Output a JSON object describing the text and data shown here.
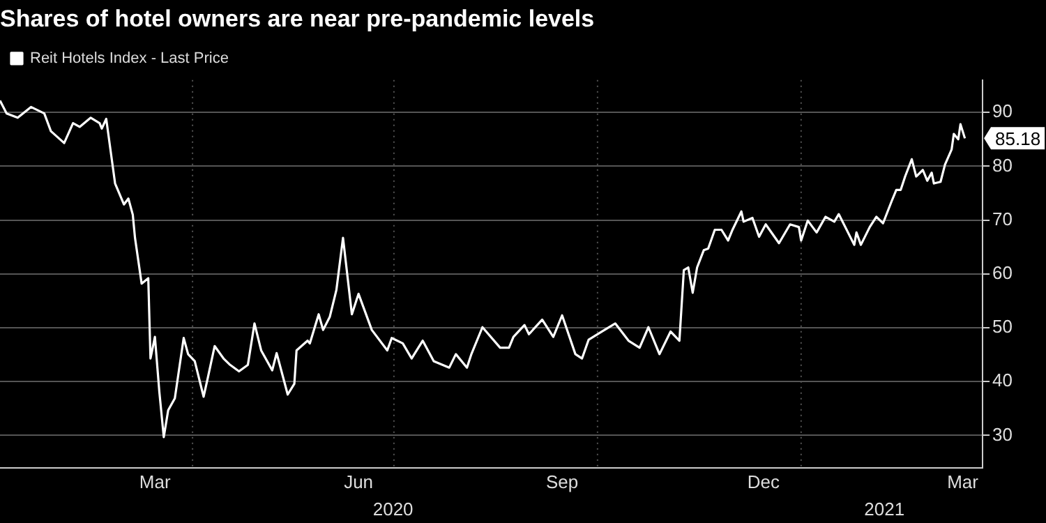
{
  "chart_data": {
    "type": "line",
    "title": "Shares of hotel owners are near pre-pandemic levels",
    "x": [
      "2020-01-05",
      "2020-01-08",
      "2020-01-13",
      "2020-01-19",
      "2020-01-25",
      "2020-01-28",
      "2020-02-03",
      "2020-02-07",
      "2020-02-10",
      "2020-02-15",
      "2020-02-19",
      "2020-02-20",
      "2020-02-22",
      "2020-02-26",
      "2020-03-01",
      "2020-03-03",
      "2020-03-05",
      "2020-03-06",
      "2020-03-09",
      "2020-03-12",
      "2020-03-13",
      "2020-03-15",
      "2020-03-17",
      "2020-03-19",
      "2020-03-21",
      "2020-03-24",
      "2020-03-28",
      "2020-03-30",
      "2020-04-02",
      "2020-04-06",
      "2020-04-08",
      "2020-04-11",
      "2020-04-15",
      "2020-04-18",
      "2020-04-22",
      "2020-04-26",
      "2020-04-29",
      "2020-05-02",
      "2020-05-07",
      "2020-05-09",
      "2020-05-14",
      "2020-05-17",
      "2020-05-18",
      "2020-05-23",
      "2020-05-24",
      "2020-05-28",
      "2020-05-30",
      "2020-06-02",
      "2020-06-05",
      "2020-06-08",
      "2020-06-12",
      "2020-06-15",
      "2020-06-21",
      "2020-06-28",
      "2020-06-30",
      "2020-07-05",
      "2020-07-09",
      "2020-07-14",
      "2020-07-19",
      "2020-07-26",
      "2020-07-29",
      "2020-08-03",
      "2020-08-05",
      "2020-08-10",
      "2020-08-18",
      "2020-08-22",
      "2020-08-24",
      "2020-08-29",
      "2020-08-31",
      "2020-09-06",
      "2020-09-11",
      "2020-09-15",
      "2020-09-21",
      "2020-09-24",
      "2020-09-27",
      "2020-10-03",
      "2020-10-09",
      "2020-10-15",
      "2020-10-20",
      "2020-10-24",
      "2020-10-29",
      "2020-11-03",
      "2020-11-07",
      "2020-11-09",
      "2020-11-11",
      "2020-11-13",
      "2020-11-15",
      "2020-11-18",
      "2020-11-20",
      "2020-11-23",
      "2020-11-26",
      "2020-11-29",
      "2020-12-01",
      "2020-12-05",
      "2020-12-06",
      "2020-12-10",
      "2020-12-13",
      "2020-12-16",
      "2020-12-22",
      "2020-12-27",
      "2020-12-31",
      "2021-01-01",
      "2021-01-04",
      "2021-01-08",
      "2021-01-12",
      "2021-01-16",
      "2021-01-18",
      "2021-01-25",
      "2021-01-26",
      "2021-01-28",
      "2021-02-01",
      "2021-02-04",
      "2021-02-07",
      "2021-02-11",
      "2021-02-13",
      "2021-02-15",
      "2021-02-17",
      "2021-02-20",
      "2021-02-22",
      "2021-02-25",
      "2021-02-27",
      "2021-03-01",
      "2021-03-02",
      "2021-03-05",
      "2021-03-07",
      "2021-03-10",
      "2021-03-11",
      "2021-03-13",
      "2021-03-14",
      "2021-03-16"
    ],
    "series": [
      {
        "name": "Reit Hotels Index - Last Price",
        "color": "#ffffff",
        "values": [
          92.2,
          89.8,
          89,
          91,
          89.8,
          86.5,
          84.3,
          88,
          87.3,
          89,
          88,
          87,
          88.8,
          76.8,
          72.9,
          74,
          71,
          66.7,
          58.2,
          59.2,
          44.3,
          48.3,
          38.1,
          29.7,
          34.7,
          36.9,
          48.1,
          45.1,
          43.8,
          37.2,
          40.9,
          46.6,
          44.3,
          43.1,
          41.9,
          43.1,
          50.8,
          45.8,
          42.1,
          45.3,
          37.6,
          39.6,
          45.8,
          47.6,
          47.1,
          52.5,
          49.6,
          52,
          57,
          66.7,
          52.5,
          56.3,
          49.6,
          45.8,
          48.1,
          47.1,
          44.3,
          47.6,
          43.8,
          42.6,
          45.1,
          42.6,
          45.1,
          50.1,
          46.3,
          46.3,
          48.3,
          50.5,
          48.8,
          51.5,
          48.3,
          52.3,
          45.1,
          44.3,
          47.8,
          49.3,
          50.8,
          47.6,
          46.3,
          50.1,
          45.1,
          49.3,
          47.6,
          60.7,
          61.2,
          56.5,
          61.2,
          64.4,
          64.7,
          68.2,
          68.2,
          66.2,
          68.2,
          71.6,
          69.7,
          70.4,
          66.9,
          69.2,
          65.7,
          69.2,
          68.7,
          66.2,
          69.9,
          67.7,
          70.6,
          69.7,
          71.1,
          65.4,
          67.7,
          65.4,
          68.7,
          70.6,
          69.4,
          73.6,
          75.6,
          75.6,
          78.1,
          81.3,
          78.1,
          79.3,
          77.3,
          78.8,
          76.8,
          77.1,
          80.3,
          83.1,
          86,
          85,
          87.8,
          85.18
        ],
        "value_labels": [
          null,
          null,
          null,
          null,
          null,
          null,
          null,
          null,
          null,
          null,
          null,
          null,
          null,
          null,
          null,
          null,
          null,
          null,
          null,
          null,
          null,
          null,
          null,
          null,
          null,
          null,
          null,
          null,
          null,
          null,
          null,
          null,
          null,
          null,
          null,
          null,
          null,
          null,
          null,
          null,
          null,
          null,
          null,
          null,
          null,
          null,
          null,
          null,
          null,
          null,
          null,
          null,
          null,
          null,
          null,
          null,
          null,
          null,
          null,
          null,
          null,
          null,
          null,
          null,
          null,
          null,
          null,
          null,
          null,
          null,
          null,
          null,
          null,
          null,
          null,
          null,
          null,
          null,
          null,
          null,
          null,
          null,
          null,
          null,
          null,
          null,
          null,
          null,
          null,
          null,
          null,
          null,
          null,
          null,
          null,
          null,
          null,
          null,
          null,
          null,
          null,
          null,
          null,
          null,
          null,
          null,
          null,
          null,
          null,
          null,
          null,
          null,
          null,
          null,
          null,
          null,
          null,
          null,
          null,
          null,
          null,
          null,
          null,
          null,
          null,
          null,
          null,
          null,
          null,
          "85.18"
        ]
      }
    ],
    "xlim": [
      "2020-01-05",
      "2021-03-24"
    ],
    "xticks": [
      {
        "value": "2020-03-15",
        "label": "Mar"
      },
      {
        "value": "2020-06-15",
        "label": "Jun"
      },
      {
        "value": "2020-09-15",
        "label": "Sep"
      },
      {
        "value": "2020-12-15",
        "label": "Dec"
      },
      {
        "value": "2021-03-15",
        "label": "Mar"
      }
    ],
    "ylim": [
      24,
      96
    ],
    "yticks": [
      30,
      40,
      50,
      60,
      70,
      80,
      90
    ],
    "ref_lines": [
      {
        "axis": "x",
        "value": "2020-04-01",
        "color": "#555555",
        "line_style": "dotted"
      },
      {
        "axis": "x",
        "value": "2020-07-01",
        "color": "#555555",
        "line_style": "dotted"
      },
      {
        "axis": "x",
        "value": "2020-10-01",
        "color": "#555555",
        "line_style": "dotted"
      },
      {
        "axis": "x",
        "value": "2021-01-01",
        "color": "#555555",
        "line_style": "dotted"
      }
    ],
    "annotations": [
      "2020",
      "2021"
    ],
    "grid": "y",
    "legend": "top left",
    "marker": "none",
    "line_style": "solid"
  }
}
